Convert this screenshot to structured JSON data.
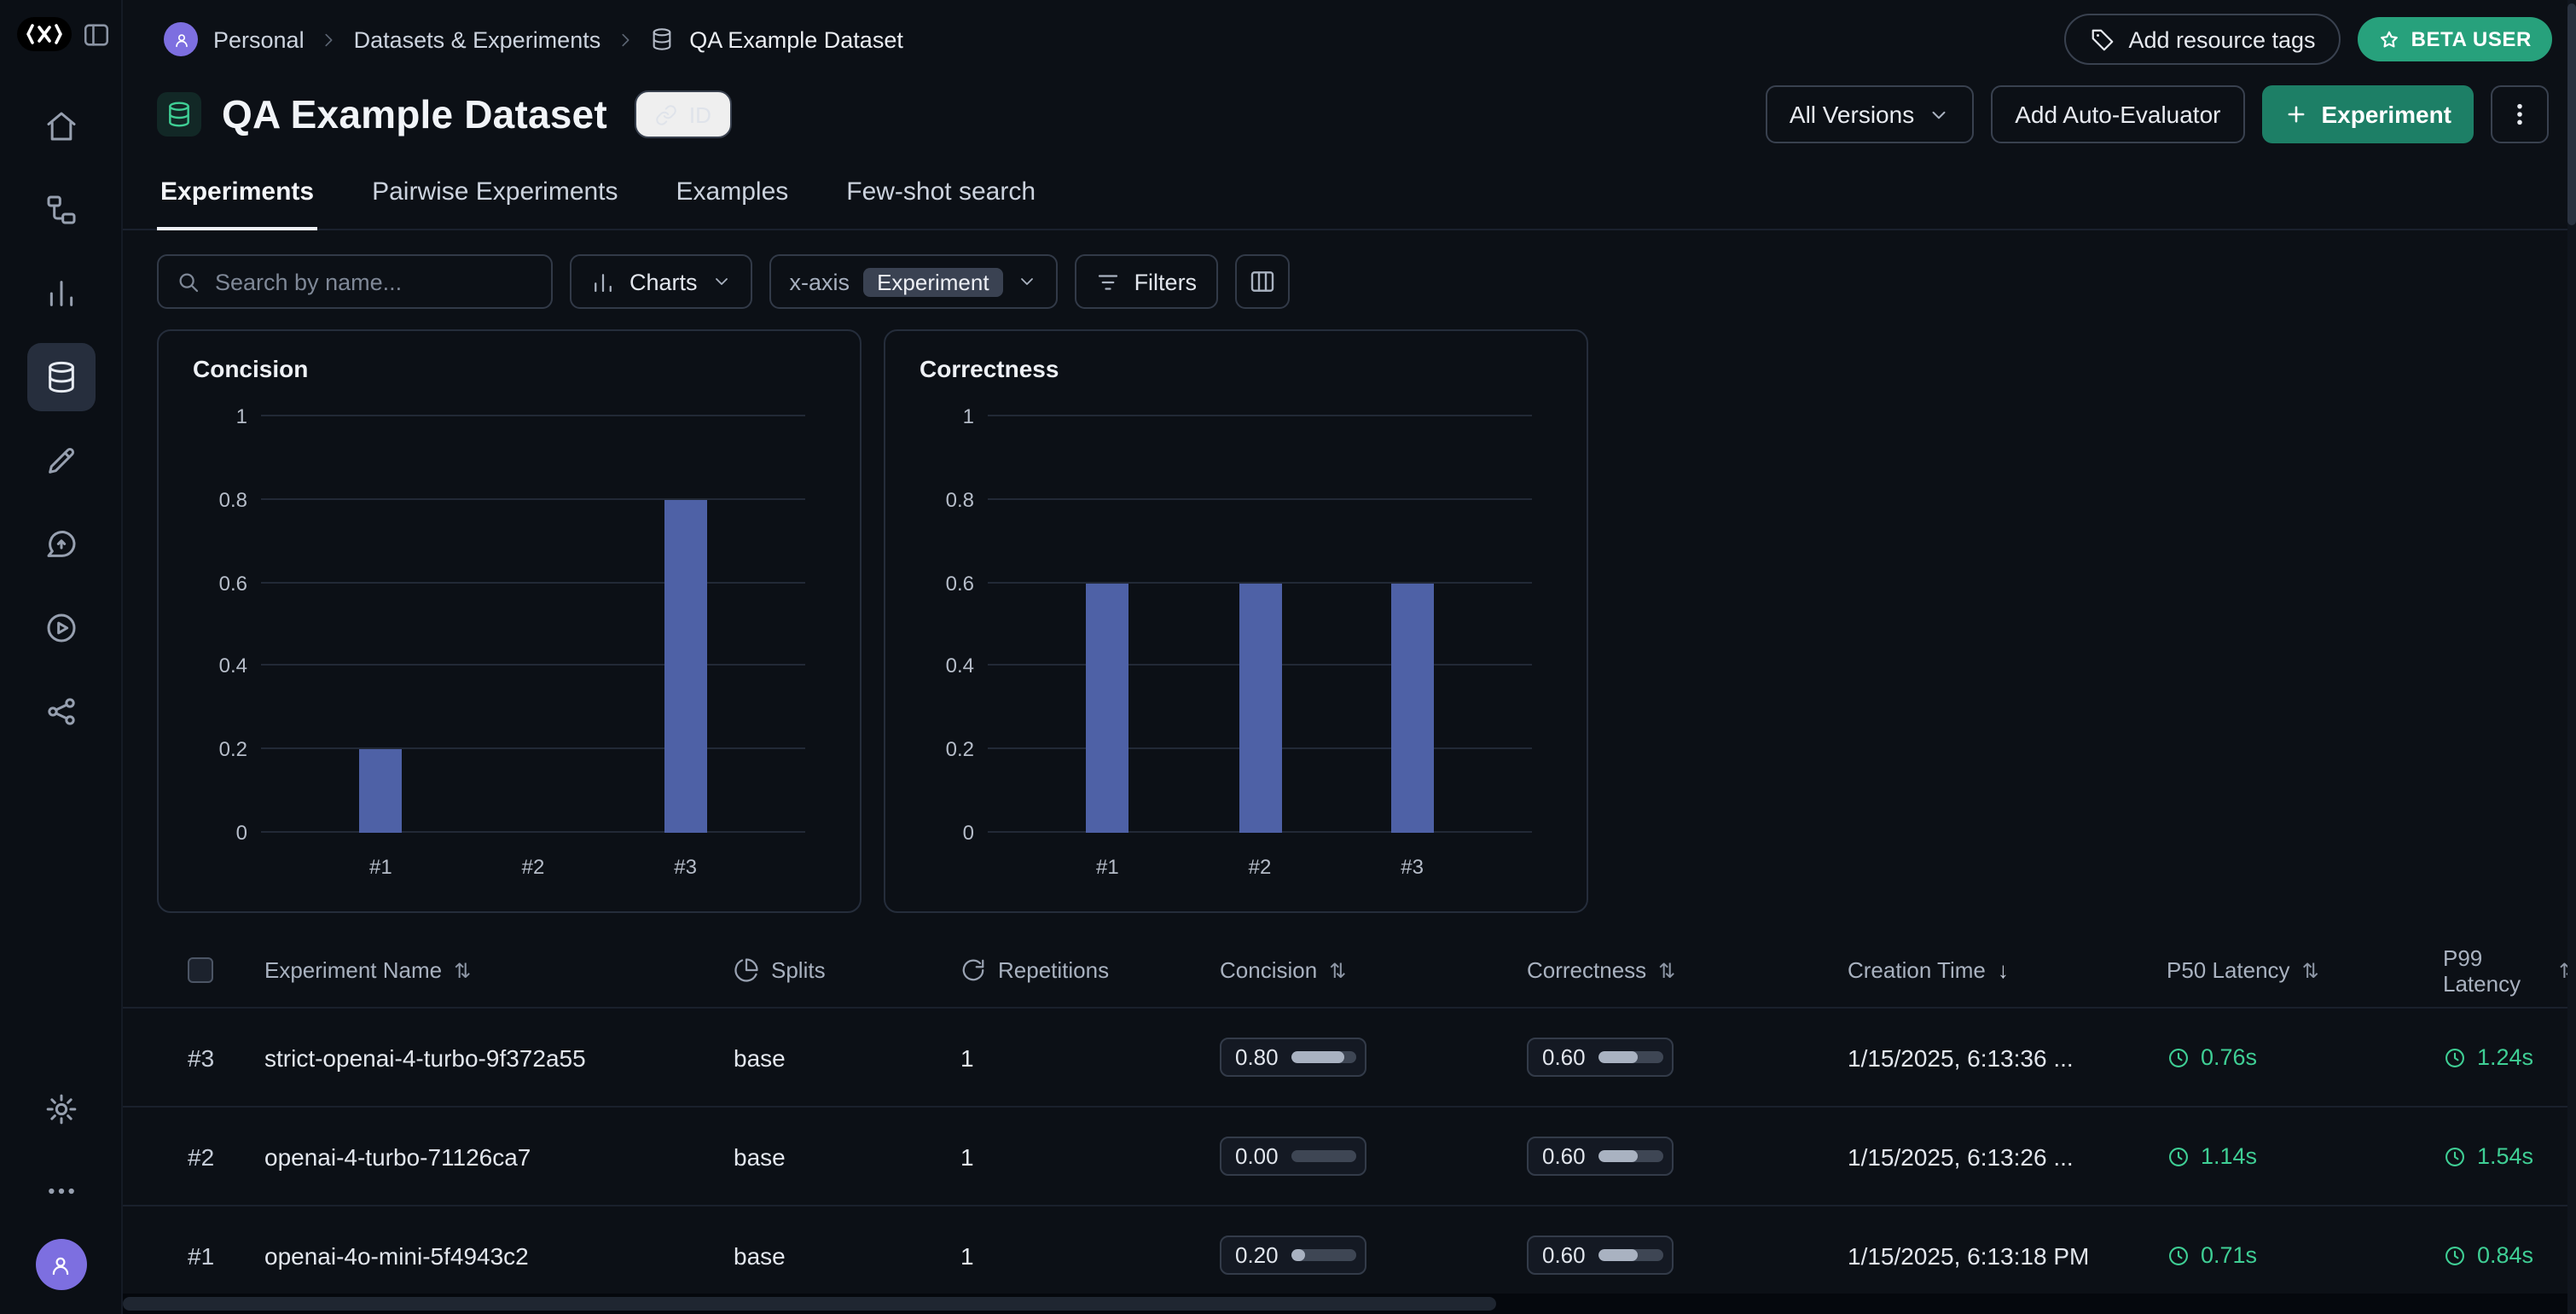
{
  "colors": {
    "accent": "#3fcf95",
    "bar": "#4e61a6",
    "experiment_button": "#1d7f66",
    "beta_badge": "#27a17c",
    "background": "#0c1016"
  },
  "icons": [
    "app-logo",
    "sidebar-toggle-icon",
    "home-icon",
    "flow-icon",
    "bar-chart-icon",
    "database-icon",
    "pencil-icon",
    "message-icon",
    "play-circle-icon",
    "share-icon",
    "settings-gear-icon",
    "more-dots-icon",
    "user-avatar",
    "tag-icon",
    "star-icon",
    "link-icon",
    "chevron-down-icon",
    "chevron-right-icon",
    "search-icon",
    "charts-icon",
    "filter-icon",
    "columns-icon",
    "pie-icon",
    "repeat-icon",
    "clock-icon",
    "kebab-menu-icon",
    "plus-icon",
    "sort-icon",
    "checkbox"
  ],
  "breadcrumb": {
    "items": [
      "Personal",
      "Datasets & Experiments",
      "QA Example Dataset"
    ]
  },
  "topbar": {
    "add_resource_tags": "Add resource tags",
    "beta_badge": "BETA USER"
  },
  "header": {
    "title": "QA Example Dataset",
    "id_button": "ID",
    "versions_button": "All Versions",
    "auto_evaluator_button": "Add Auto-Evaluator",
    "experiment_button": "Experiment"
  },
  "tabs": [
    {
      "label": "Experiments",
      "active": true
    },
    {
      "label": "Pairwise Experiments",
      "active": false
    },
    {
      "label": "Examples",
      "active": false
    },
    {
      "label": "Few-shot search",
      "active": false
    }
  ],
  "toolbar": {
    "search_placeholder": "Search by name...",
    "charts_button": "Charts",
    "xaxis_label": "x-axis",
    "xaxis_value": "Experiment",
    "filters_button": "Filters"
  },
  "chart_data": [
    {
      "type": "bar",
      "title": "Concision",
      "categories": [
        "#1",
        "#2",
        "#3"
      ],
      "values": [
        0.2,
        0,
        0.8
      ],
      "ylim": [
        0,
        1
      ],
      "yticks": [
        0,
        0.2,
        0.4,
        0.6,
        0.8,
        1
      ],
      "grid": true,
      "legend": false,
      "xlabel": "",
      "ylabel": ""
    },
    {
      "type": "bar",
      "title": "Correctness",
      "categories": [
        "#1",
        "#2",
        "#3"
      ],
      "values": [
        0.6,
        0.6,
        0.6
      ],
      "ylim": [
        0,
        1
      ],
      "yticks": [
        0,
        0.2,
        0.4,
        0.6,
        0.8,
        1
      ],
      "grid": true,
      "legend": false,
      "xlabel": "",
      "ylabel": ""
    }
  ],
  "table": {
    "headers": {
      "name": "Experiment Name",
      "splits": "Splits",
      "repetitions": "Repetitions",
      "concision": "Concision",
      "correctness": "Correctness",
      "creation": "Creation Time",
      "p50": "P50 Latency",
      "p99": "P99 Latency"
    },
    "sort_icon": "⇅",
    "sort_desc_icon": "↓",
    "rows": [
      {
        "id": "#3",
        "name": "strict-openai-4-turbo-9f372a55",
        "splits": "base",
        "repetitions": "1",
        "concision": "0.80",
        "concision_pct": 80,
        "correctness": "0.60",
        "correctness_pct": 60,
        "creation": "1/15/2025, 6:13:36 ...",
        "p50": "0.76s",
        "p99": "1.24s"
      },
      {
        "id": "#2",
        "name": "openai-4-turbo-71126ca7",
        "splits": "base",
        "repetitions": "1",
        "concision": "0.00",
        "concision_pct": 0,
        "correctness": "0.60",
        "correctness_pct": 60,
        "creation": "1/15/2025, 6:13:26 ...",
        "p50": "1.14s",
        "p99": "1.54s"
      },
      {
        "id": "#1",
        "name": "openai-4o-mini-5f4943c2",
        "splits": "base",
        "repetitions": "1",
        "concision": "0.20",
        "concision_pct": 20,
        "correctness": "0.60",
        "correctness_pct": 60,
        "creation": "1/15/2025, 6:13:18 PM",
        "p50": "0.71s",
        "p99": "0.84s"
      }
    ]
  }
}
